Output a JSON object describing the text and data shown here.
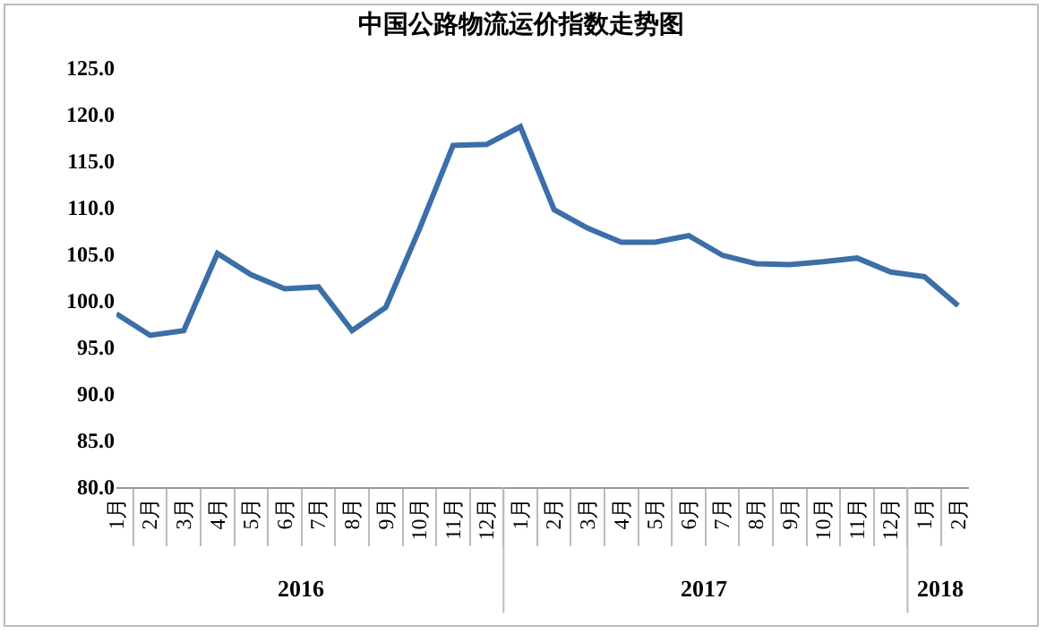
{
  "chart_data": {
    "type": "line",
    "title": "中国公路物流运价指数走势图",
    "categories": [
      "1月",
      "2月",
      "3月",
      "4月",
      "5月",
      "6月",
      "7月",
      "8月",
      "9月",
      "10月",
      "11月",
      "12月",
      "1月",
      "2月",
      "3月",
      "4月",
      "5月",
      "6月",
      "7月",
      "8月",
      "9月",
      "10月",
      "11月",
      "12月",
      "1月",
      "2月"
    ],
    "series": [
      {
        "color": "#3c6ea8",
        "values": [
          98.6,
          96.3,
          96.8,
          105.1,
          102.8,
          101.3,
          101.5,
          96.8,
          99.3,
          107.7,
          116.7,
          116.8,
          118.7,
          109.8,
          107.8,
          106.3,
          106.3,
          107.0,
          104.9,
          104.0,
          103.9,
          104.2,
          104.6,
          103.1,
          102.6,
          99.5
        ]
      }
    ],
    "ylim": [
      80,
      125
    ],
    "yticks": [
      {
        "value": 80,
        "label": "80.0"
      },
      {
        "value": 85,
        "label": "85.0"
      },
      {
        "value": 90,
        "label": "90.0"
      },
      {
        "value": 95,
        "label": "95.0"
      },
      {
        "value": 100,
        "label": "100.0"
      },
      {
        "value": 105,
        "label": "105.0"
      },
      {
        "value": 110,
        "label": "110.0"
      },
      {
        "value": 115,
        "label": "115.0"
      },
      {
        "value": 120,
        "label": "120.0"
      },
      {
        "value": 125,
        "label": "125.0"
      }
    ],
    "annotations": [
      "2016",
      "2017",
      "2018"
    ],
    "grid": false,
    "marker": "none",
    "line_style": "solid"
  }
}
